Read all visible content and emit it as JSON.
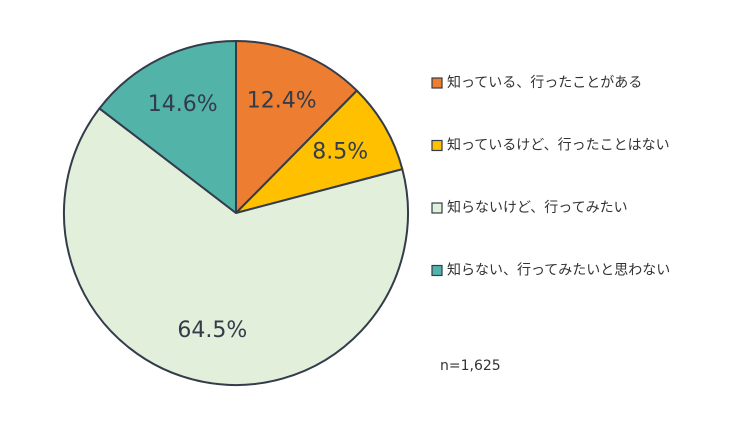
{
  "chart_data": {
    "type": "pie",
    "categories": [
      "知っている、行ったことがある",
      "知っているけど、行ったことはない",
      "知らないけど、行ってみたい",
      "知らない、行ってみたいと思わない"
    ],
    "values": [
      12.4,
      8.5,
      64.5,
      14.6
    ],
    "value_labels": [
      "12.4%",
      "8.5%",
      "64.5%",
      "14.6%"
    ],
    "colors": [
      "#ed7d31",
      "#ffc000",
      "#e2efda",
      "#52b3a9"
    ],
    "annotation": "n=1,625",
    "legend": "right"
  }
}
